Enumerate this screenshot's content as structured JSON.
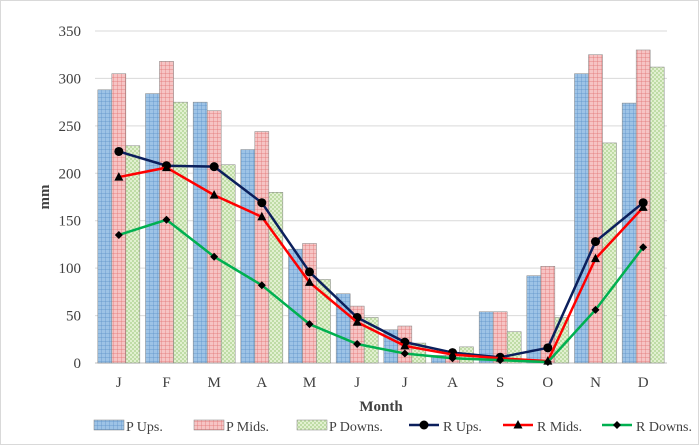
{
  "chart_data": {
    "type": "bar",
    "categories": [
      "J",
      "F",
      "M",
      "A",
      "M",
      "J",
      "J",
      "A",
      "S",
      "O",
      "N",
      "D"
    ],
    "xlabel": "Month",
    "ylabel": "mm",
    "ylim": [
      0,
      350
    ],
    "yticks": [
      0,
      50,
      100,
      150,
      200,
      250,
      300,
      350
    ],
    "grid": true,
    "legend_position": "bottom",
    "bar_series": [
      {
        "name": "P Ups.",
        "color": "#9dc3e6",
        "pattern": "blue-grid",
        "values": [
          288,
          284,
          275,
          225,
          120,
          73,
          35,
          8,
          54,
          92,
          305,
          274
        ]
      },
      {
        "name": "P Mids.",
        "color": "#f4b6b6",
        "pattern": "red-grid",
        "values": [
          305,
          318,
          266,
          244,
          126,
          60,
          39,
          8,
          54,
          102,
          325,
          330
        ]
      },
      {
        "name": "P Downs.",
        "color": "#dff0cc",
        "pattern": "green-grid",
        "values": [
          229,
          275,
          209,
          180,
          88,
          48,
          21,
          17,
          33,
          48,
          232,
          312
        ]
      }
    ],
    "line_series": [
      {
        "name": "R Ups.",
        "color": "#0b1f5c",
        "marker": "circle",
        "values": [
          223,
          208,
          207,
          169,
          96,
          48,
          22,
          11,
          6,
          16,
          128,
          169
        ]
      },
      {
        "name": "R Mids.",
        "color": "#ff0000",
        "marker": "triangle",
        "values": [
          196,
          206,
          177,
          154,
          85,
          43,
          18,
          9,
          5,
          2,
          110,
          164
        ]
      },
      {
        "name": "R Downs.",
        "color": "#00b050",
        "marker": "diamond",
        "values": [
          135,
          151,
          112,
          82,
          41,
          20,
          10,
          5,
          3,
          1,
          56,
          122
        ]
      }
    ]
  }
}
